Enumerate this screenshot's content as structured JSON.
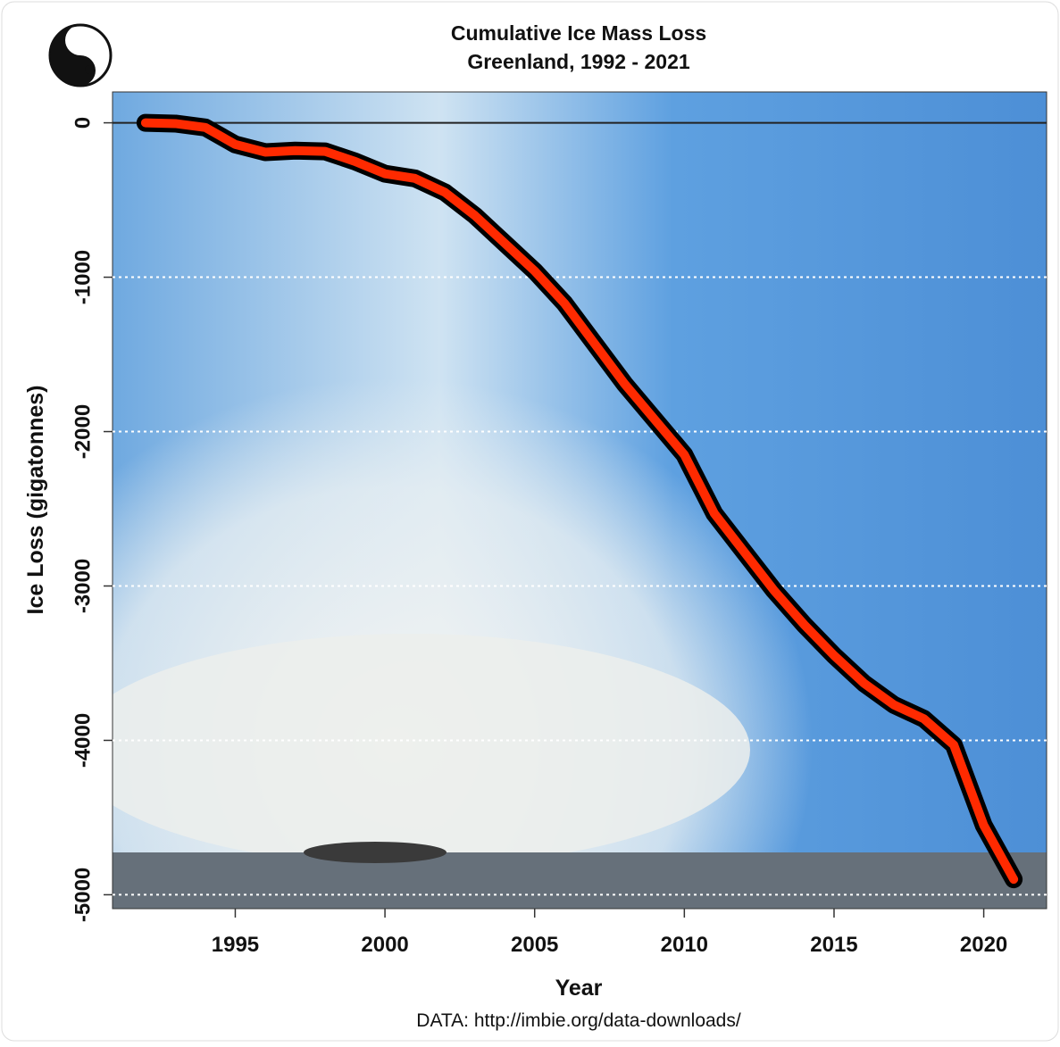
{
  "chart_data": {
    "type": "line",
    "title": "Cumulative Ice Mass Loss",
    "subtitle": "Greenland, 1992 - 2021",
    "x_label": "Year",
    "y_label": "Ice Loss (gigatonnes)",
    "source": "DATA: http://imbie.org/data-downloads/",
    "x": [
      1992,
      1993,
      1994,
      1995,
      1996,
      1997,
      1998,
      1999,
      2000,
      2001,
      2002,
      2003,
      2004,
      2005,
      2006,
      2007,
      2008,
      2009,
      2010,
      2011,
      2012,
      2013,
      2014,
      2015,
      2016,
      2017,
      2018,
      2019,
      2020,
      2021
    ],
    "series": [
      {
        "name": "Greenland",
        "color": "#ff2a00",
        "values": [
          0,
          -5,
          -30,
          -140,
          -190,
          -180,
          -185,
          -250,
          -330,
          -360,
          -450,
          -600,
          -780,
          -960,
          -1170,
          -1430,
          -1690,
          -1920,
          -2150,
          -2530,
          -2780,
          -3030,
          -3250,
          -3450,
          -3630,
          -3770,
          -3860,
          -4030,
          -4550,
          -4900
        ]
      }
    ],
    "xlim": [
      1990.9,
      2022.1
    ],
    "ylim": [
      -5090,
      200
    ],
    "xticks": [
      1995,
      2000,
      2005,
      2010,
      2015,
      2020
    ],
    "yticks": [
      0,
      -1000,
      -2000,
      -3000,
      -4000,
      -5000
    ],
    "hline": 0,
    "grid": true
  }
}
